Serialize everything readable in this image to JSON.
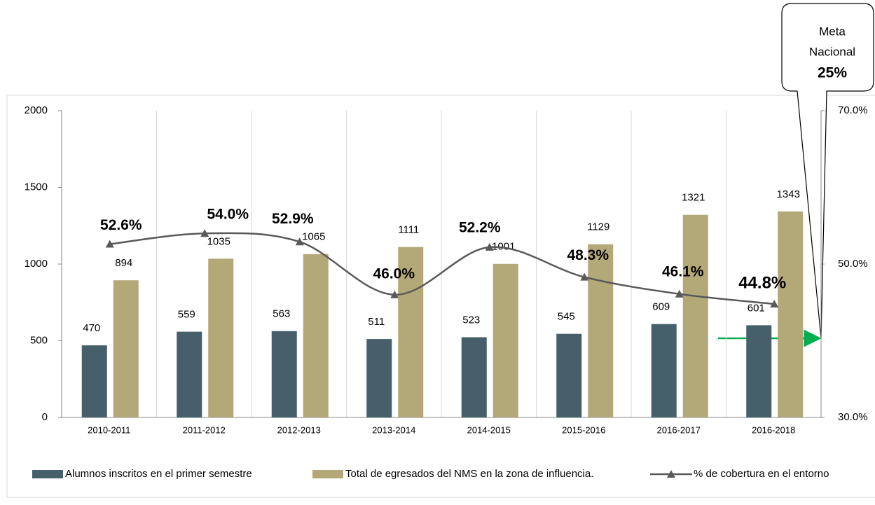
{
  "chart_data": {
    "type": "bar",
    "categories": [
      "2010-2011",
      "2011-2012",
      "2012-2013",
      "2013-2014",
      "2014-2015",
      "2015-2016",
      "2016-2017",
      "2016-2018"
    ],
    "series": [
      {
        "name": "Alumnos inscritos en el primer semestre",
        "color": "#465f6b",
        "values": [
          470,
          559,
          563,
          511,
          523,
          545,
          609,
          601
        ]
      },
      {
        "name": "Total de egresados del NMS en la zona de influencia.",
        "color": "#b3a878",
        "values": [
          894,
          1035,
          1065,
          1111,
          1001,
          1129,
          1321,
          1343
        ]
      },
      {
        "name": "% de cobertura en el entorno",
        "color": "#595959",
        "type": "line",
        "axis": "y2",
        "values": [
          52.6,
          54.0,
          52.9,
          46.0,
          52.2,
          48.3,
          46.1,
          44.8
        ],
        "value_labels": [
          "52.6%",
          "54.0%",
          "52.9%",
          "46.0%",
          "52.2%",
          "48.3%",
          "46.1%",
          "44.8%"
        ]
      }
    ],
    "ylim": [
      0,
      2000
    ],
    "yticks": [
      0,
      500,
      1000,
      1500,
      2000
    ],
    "y2lim": [
      30,
      70
    ],
    "y2ticks": [
      {
        "value": 30,
        "label": "30.0%"
      },
      {
        "value": 50,
        "label": "50.0%"
      },
      {
        "value": 70,
        "label": "70.0%"
      }
    ],
    "grid": true,
    "legend": "bottom",
    "annotation": [
      "Meta",
      "Nacional",
      "25%"
    ]
  }
}
